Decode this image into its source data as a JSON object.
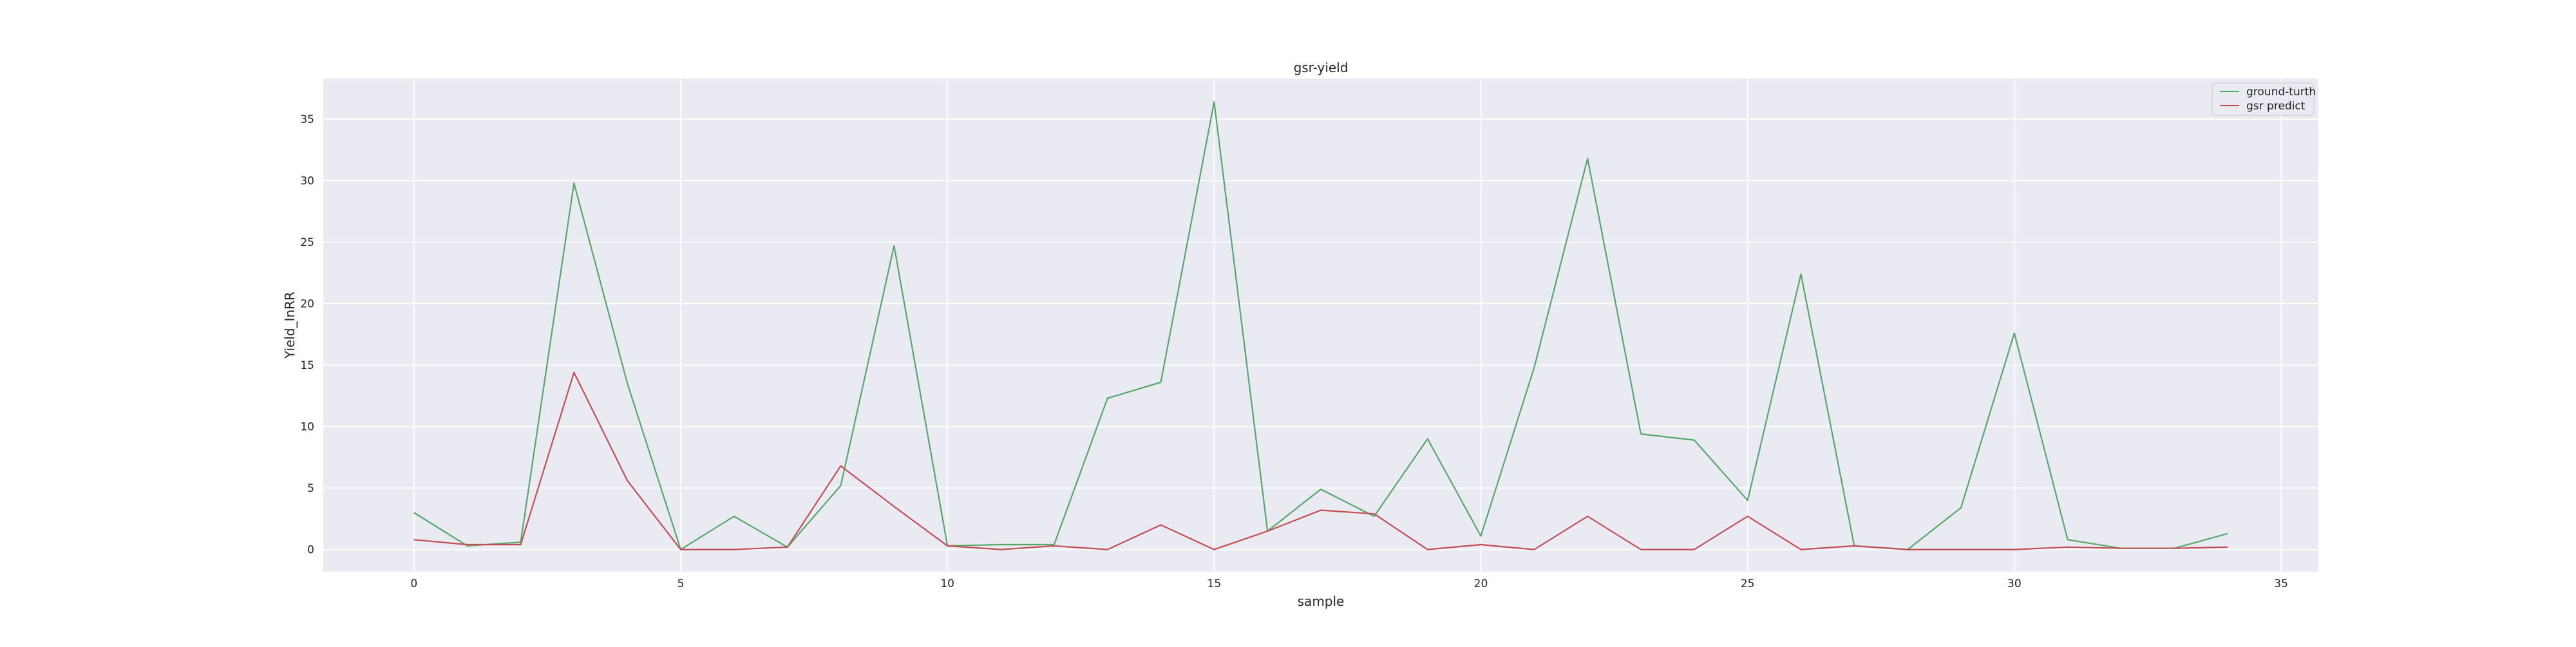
{
  "chart_data": {
    "type": "line",
    "title": "gsr-yield",
    "xlabel": "sample",
    "ylabel": "Yield_InRR",
    "xlim": [
      -1.7,
      35.7
    ],
    "ylim": [
      -1.8,
      38.3
    ],
    "xticks": [
      0,
      5,
      10,
      15,
      20,
      25,
      30,
      35
    ],
    "yticks": [
      0,
      5,
      10,
      15,
      20,
      25,
      30,
      35
    ],
    "grid": true,
    "legend_position": "top-right",
    "x": [
      0,
      1,
      2,
      3,
      4,
      5,
      6,
      7,
      8,
      9,
      10,
      11,
      12,
      13,
      14,
      15,
      16,
      17,
      18,
      19,
      20,
      21,
      22,
      23,
      24,
      25,
      26,
      27,
      28,
      29,
      30,
      31,
      32,
      33,
      34
    ],
    "series": [
      {
        "name": "ground-turth",
        "color": "#55a868",
        "values": [
          3.0,
          0.3,
          0.6,
          29.8,
          13.5,
          0.0,
          2.7,
          0.2,
          5.2,
          24.7,
          0.3,
          0.4,
          0.4,
          12.3,
          13.6,
          36.4,
          1.5,
          4.9,
          2.7,
          9.0,
          1.1,
          14.8,
          31.8,
          9.4,
          8.9,
          4.0,
          22.4,
          0.3,
          0.0,
          3.4,
          17.6,
          0.8,
          0.1,
          0.1,
          1.3
        ]
      },
      {
        "name": "gsr predict",
        "color": "#c44e52",
        "values": [
          0.8,
          0.4,
          0.4,
          14.4,
          5.6,
          0.0,
          0.0,
          0.2,
          6.8,
          3.5,
          0.3,
          0.0,
          0.3,
          0.0,
          2.0,
          0.0,
          1.5,
          3.2,
          2.9,
          0.0,
          0.4,
          0.0,
          2.7,
          0.0,
          0.0,
          2.7,
          0.0,
          0.3,
          0.0,
          0.0,
          0.0,
          0.2,
          0.1,
          0.1,
          0.2
        ]
      }
    ]
  }
}
